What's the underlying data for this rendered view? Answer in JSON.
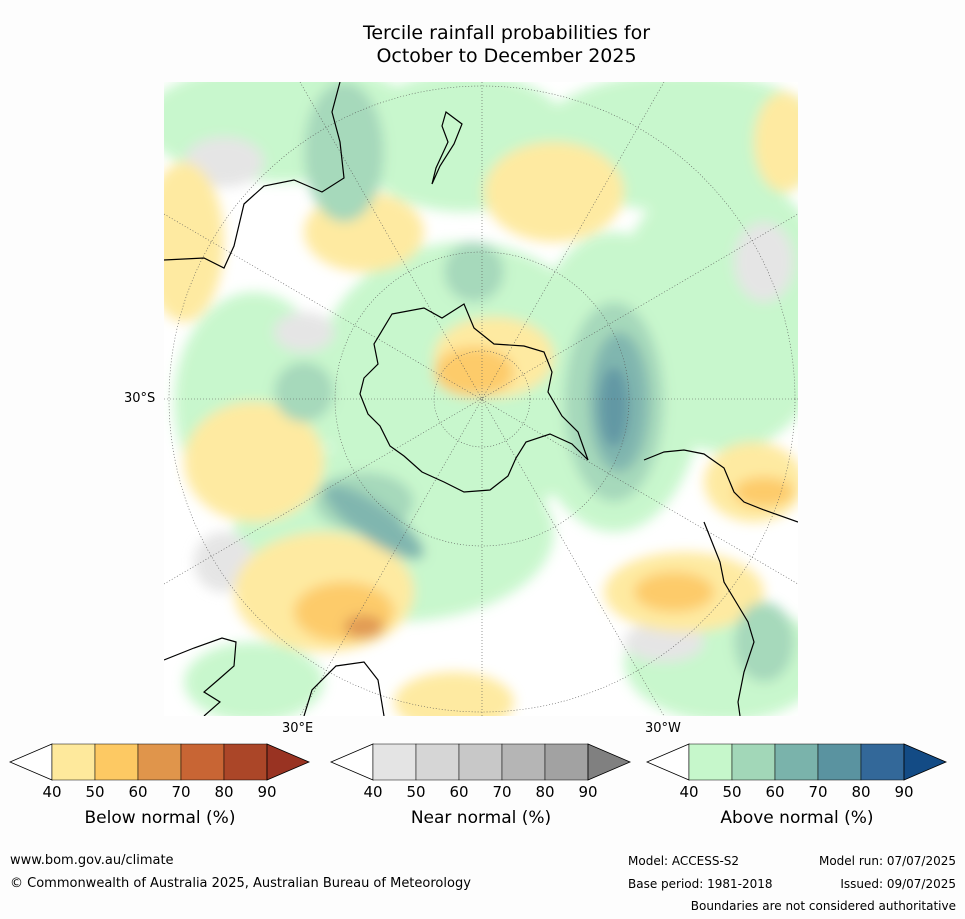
{
  "title": {
    "line1": "Tercile rainfall probabilities for",
    "line2": "October to December 2025"
  },
  "map": {
    "lat_label": "30°S",
    "lon_labels": [
      "30°E",
      "30°W"
    ]
  },
  "colorbars": [
    {
      "title": "Below normal (%)",
      "ticks": [
        "40",
        "50",
        "60",
        "70",
        "80",
        "90"
      ],
      "colors": [
        "#ffffff",
        "#fee99c",
        "#fdc963",
        "#e0954b",
        "#c86534",
        "#ab4628",
        "#993322"
      ]
    },
    {
      "title": "Near normal (%)",
      "ticks": [
        "40",
        "50",
        "60",
        "70",
        "80",
        "90"
      ],
      "colors": [
        "#ffffff",
        "#e4e4e4",
        "#d6d6d6",
        "#c8c8c8",
        "#b5b5b5",
        "#a2a2a2",
        "#808080"
      ]
    },
    {
      "title": "Above normal (%)",
      "ticks": [
        "40",
        "50",
        "60",
        "70",
        "80",
        "90"
      ],
      "colors": [
        "#ffffff",
        "#c6f7cb",
        "#a2d7b8",
        "#7ab3ab",
        "#5a93a0",
        "#336899",
        "#134b85"
      ]
    }
  ],
  "footer": {
    "website": "www.bom.gov.au/climate",
    "copyright": "© Commonwealth of Australia 2025, Australian Bureau of Meteorology",
    "model": "Model: ACCESS-S2",
    "base_period": "Base period: 1981-2018",
    "model_run": "Model run: 07/07/2025",
    "issued": "Issued: 09/07/2025",
    "disclaimer": "Boundaries are not considered authoritative"
  }
}
